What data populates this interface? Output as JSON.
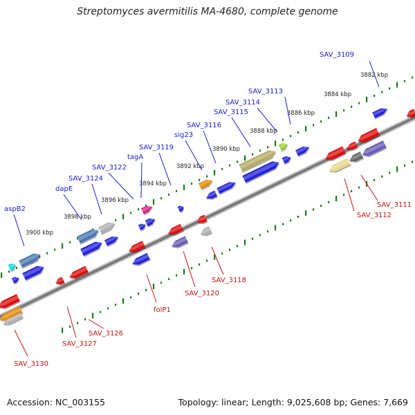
{
  "title": "Streptomyces avermitilis MA-4680, complete genome",
  "footer": {
    "accession": "Accession: NC_003155",
    "summary": "Topology: linear; Length: 9,025,608 bp; Genes: 7,669"
  },
  "colors": {
    "forward_label": "#1a1acc",
    "reverse_label": "#cc1111",
    "tick": "#1a7a1a",
    "backbone": "#8a8a8a"
  },
  "scale": {
    "unit": "kbp",
    "ticks": [
      {
        "label": "3882 kbp",
        "pos": 3882
      },
      {
        "label": "3884 kbp",
        "pos": 3884
      },
      {
        "label": "3886 kbp",
        "pos": 3886
      },
      {
        "label": "3888 kbp",
        "pos": 3888
      },
      {
        "label": "3890 kbp",
        "pos": 3890
      },
      {
        "label": "3892 kbp",
        "pos": 3892
      },
      {
        "label": "3894 kbp",
        "pos": 3894
      },
      {
        "label": "3896 kbp",
        "pos": 3896
      },
      {
        "label": "3898 kbp",
        "pos": 3898
      },
      {
        "label": "3900 kbp",
        "pos": 3900
      }
    ]
  },
  "forward_genes": [
    {
      "label": "SAV_3109",
      "color": "#2222dd"
    },
    {
      "label": "SAV_3113",
      "color": "#9ad62e"
    },
    {
      "label": "SAV_3114",
      "color": "#2222dd"
    },
    {
      "label": "SAV_3115",
      "color": "#b4ad63"
    },
    {
      "label": "SAV_3116",
      "color": "#2222dd"
    },
    {
      "label": "sig23",
      "color": "#e88a00"
    },
    {
      "label": "SAV_3119",
      "color": "#2222dd"
    },
    {
      "label": "tagA",
      "color": "#d6218a"
    },
    {
      "label": "SAV_3122",
      "color": "#b0b0b0"
    },
    {
      "label": "SAV_3124",
      "color": "#4a78b0"
    },
    {
      "label": "dapE",
      "color": "#4a78b0"
    },
    {
      "label": "aspB2",
      "color": "#4a78b0"
    }
  ],
  "reverse_genes": [
    {
      "label": "SAV_3111",
      "color": "#dd1111"
    },
    {
      "label": "SAV_3112",
      "color": "#e8d98a"
    },
    {
      "label": "SAV_3118",
      "color": "#b0b0b0"
    },
    {
      "label": "SAV_3120",
      "color": "#6a5ab8"
    },
    {
      "label": "folP1",
      "color": "#2222dd"
    },
    {
      "label": "SAV_3126",
      "color": "#dd1111"
    },
    {
      "label": "SAV_3127",
      "color": "#dd1111"
    },
    {
      "label": "SAV_3130",
      "color": "#dd1111"
    }
  ]
}
